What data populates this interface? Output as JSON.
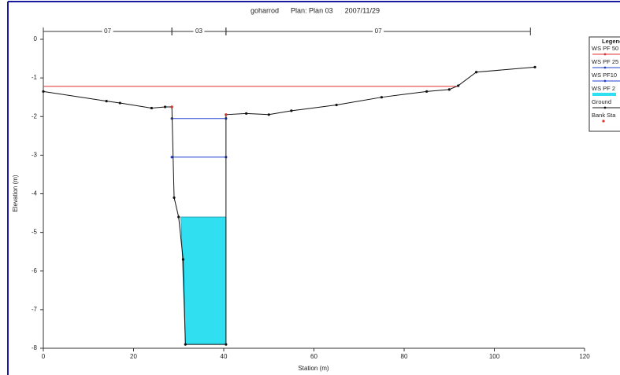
{
  "chart_data": {
    "type": "line",
    "title": "goharrod      Plan: Plan 03      2007/11/29",
    "x_label": "Station (m)",
    "y_label": "Elevation (m)",
    "xlim": [
      0,
      120
    ],
    "ylim": [
      -8,
      0
    ],
    "xticks": [
      0,
      20,
      40,
      60,
      80,
      100,
      120
    ],
    "yticks": [
      0,
      -1,
      -2,
      -3,
      -4,
      -5,
      -6,
      -7,
      -8
    ],
    "legend_title": "Legend",
    "reaches": [
      {
        "label": "07",
        "from": 0,
        "to": 28.5
      },
      {
        "label": "03",
        "from": 28.5,
        "to": 40.5
      },
      {
        "label": "07",
        "from": 40.5,
        "to": 108
      }
    ],
    "series": [
      {
        "name": "WS PF 50",
        "color": "#e03030",
        "x": [
          0,
          92
        ],
        "y": [
          -1.22,
          -1.22
        ]
      },
      {
        "name": "WS PF 25",
        "color": "#2040d0",
        "x": [
          28.5,
          40.5
        ],
        "y": [
          -2.05,
          -2.05
        ]
      },
      {
        "name": "WS PF10",
        "color": "#2040d0",
        "x": [
          28.5,
          40.5
        ],
        "y": [
          -3.05,
          -3.05
        ]
      },
      {
        "name": "WS PF 2",
        "color": "#30e0f0",
        "fill": true,
        "x": [
          30.5,
          40.5,
          40.5,
          31.5
        ],
        "y": [
          -4.6,
          -4.6,
          -7.9,
          -7.9
        ]
      },
      {
        "name": "Ground",
        "color": "#111111",
        "x": [
          0,
          14,
          17,
          24,
          27,
          28.5,
          29,
          30,
          31,
          31.5,
          40.5,
          40.5,
          45,
          50,
          55,
          65,
          75,
          85,
          90,
          92,
          96,
          109
        ],
        "y": [
          -1.35,
          -1.6,
          -1.65,
          -1.78,
          -1.75,
          -1.75,
          -4.1,
          -4.6,
          -5.7,
          -7.9,
          -7.9,
          -1.95,
          -1.92,
          -1.95,
          -1.85,
          -1.7,
          -1.5,
          -1.35,
          -1.3,
          -1.2,
          -0.85,
          -0.72
        ]
      },
      {
        "name": "Bank Sta",
        "color": "#e03030",
        "marker_only": true,
        "x": [
          28.5,
          40.5
        ],
        "y": [
          -1.75,
          -1.95
        ]
      }
    ]
  }
}
